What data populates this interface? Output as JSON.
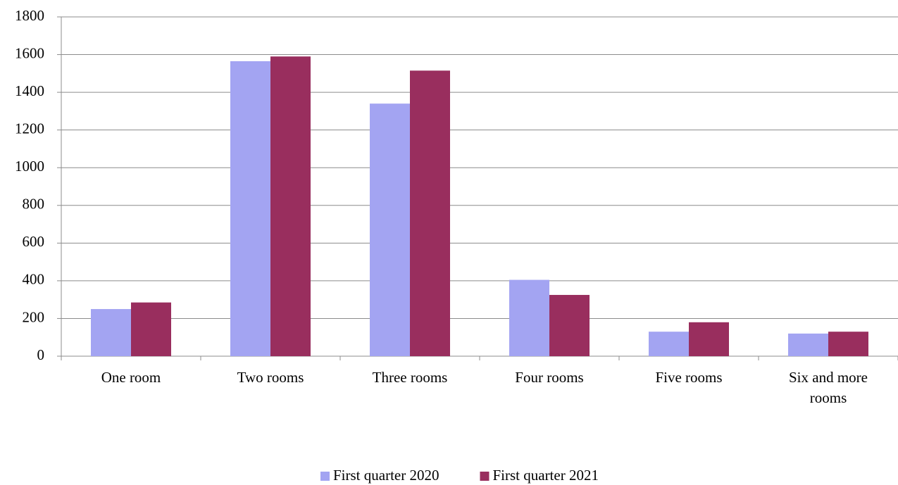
{
  "chart_data": {
    "type": "bar",
    "categories": [
      "One room",
      "Two rooms",
      "Three rooms",
      "Four rooms",
      "Five rooms",
      "Six and more rooms"
    ],
    "series": [
      {
        "name": "First quarter 2020",
        "color": "#a3a4f2",
        "values": [
          250,
          1565,
          1340,
          405,
          130,
          120
        ]
      },
      {
        "name": "First quarter 2021",
        "color": "#992e5e",
        "values": [
          285,
          1590,
          1515,
          325,
          180,
          130
        ]
      }
    ],
    "ylim": [
      0,
      1800
    ],
    "yticks": [
      0,
      200,
      400,
      600,
      800,
      1000,
      1200,
      1400,
      1600,
      1800
    ],
    "grid": true,
    "legend": "bottom"
  }
}
